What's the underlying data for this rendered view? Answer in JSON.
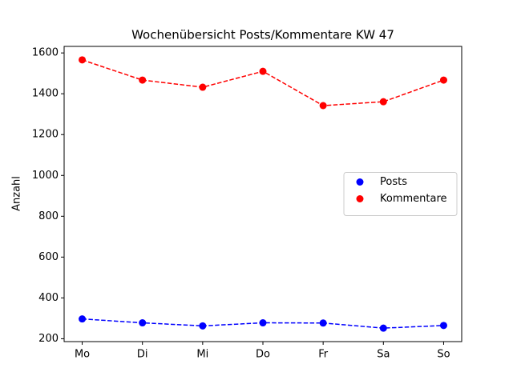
{
  "chart_data": {
    "type": "line",
    "title": "Wochenübersicht Posts/Kommentare KW 47",
    "ylabel": "Anzahl",
    "categories": [
      "Mo",
      "Di",
      "Mi",
      "Do",
      "Fr",
      "Sa",
      "So"
    ],
    "series": [
      {
        "name": "Posts",
        "color": "#0000ff",
        "values": [
          297,
          278,
          263,
          278,
          277,
          252,
          265
        ]
      },
      {
        "name": "Kommentare",
        "color": "#ff0000",
        "values": [
          1566,
          1467,
          1432,
          1510,
          1342,
          1361,
          1467
        ]
      }
    ],
    "ylim": [
      186,
      1632
    ],
    "yticks": [
      200,
      400,
      600,
      800,
      1000,
      1200,
      1400,
      1600
    ],
    "legend": "center right",
    "line_style": "dashed",
    "markers": true
  }
}
